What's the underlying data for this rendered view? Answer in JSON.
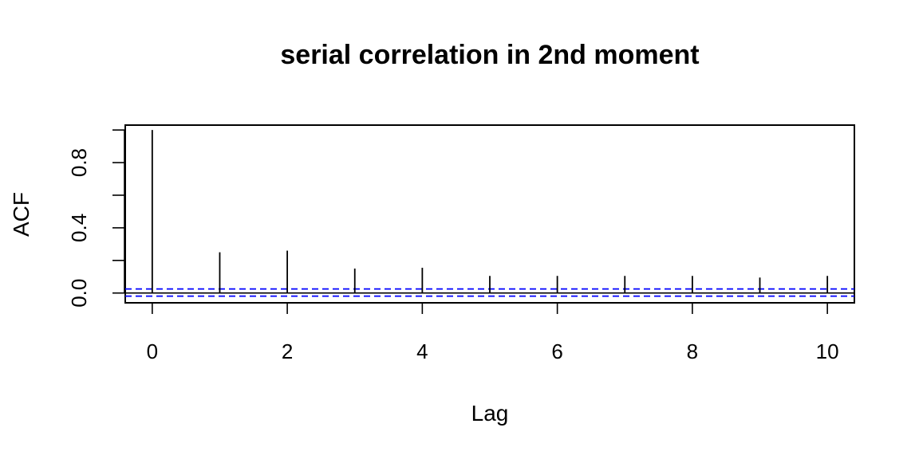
{
  "chart_data": {
    "type": "bar",
    "title": "serial correlation in 2nd moment",
    "xlabel": "Lag",
    "ylabel": "ACF",
    "x": [
      0,
      1,
      2,
      3,
      4,
      5,
      6,
      7,
      8,
      9,
      10
    ],
    "values": [
      1.0,
      0.25,
      0.26,
      0.15,
      0.155,
      0.105,
      0.105,
      0.105,
      0.105,
      0.095,
      0.105
    ],
    "confidence_bounds": [
      -0.019,
      0.025
    ],
    "xlim": [
      -0.4,
      10.4
    ],
    "ylim": [
      -0.06,
      1.03
    ],
    "x_ticks": [
      0,
      2,
      4,
      6,
      8,
      10
    ],
    "x_tick_labels": [
      "0",
      "2",
      "4",
      "6",
      "8",
      "10"
    ],
    "y_ticks": [
      0.0,
      0.2,
      0.4,
      0.6,
      0.8,
      1.0
    ],
    "y_tick_labels": [
      "0.0",
      "0.4",
      "0.8"
    ],
    "y_labeled_ticks": [
      0.0,
      0.4,
      0.8
    ],
    "colors": {
      "spike": "#000000",
      "confidence": "#0000ff",
      "frame": "#000000"
    },
    "grid": false
  }
}
